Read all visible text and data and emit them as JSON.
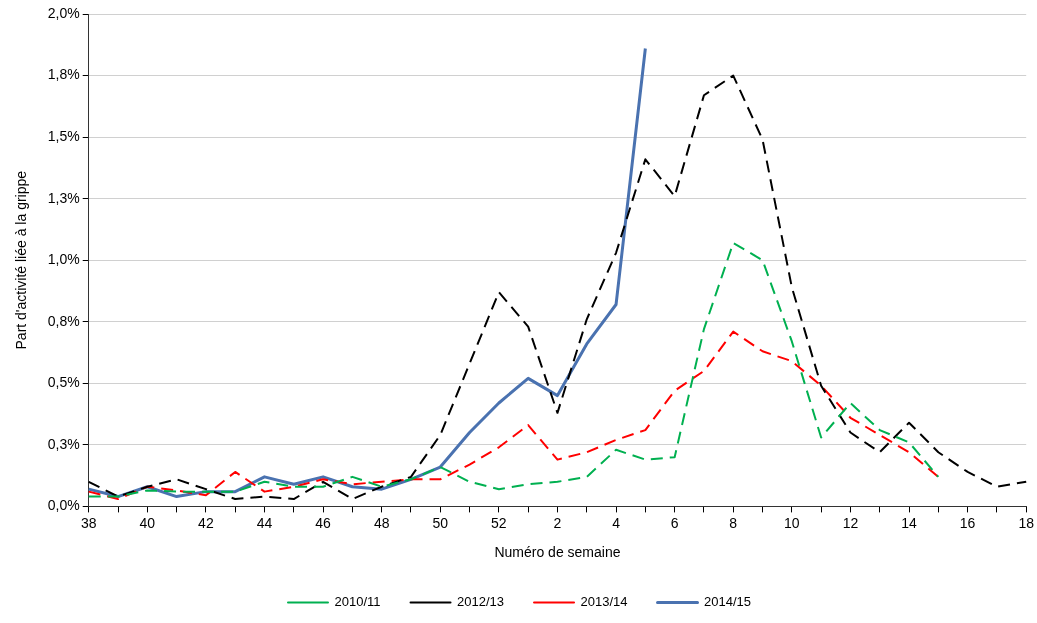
{
  "chart_data": {
    "type": "line",
    "xlabel": "Numéro de semaine",
    "ylabel": "Part d'activité liée à la grippe",
    "categories": [
      "38",
      null,
      "40",
      null,
      "42",
      null,
      "44",
      null,
      "46",
      null,
      "48",
      null,
      "50",
      null,
      "52",
      null,
      "2",
      null,
      "4",
      null,
      "6",
      null,
      "8",
      null,
      "10",
      null,
      "12",
      null,
      "14",
      null,
      "16",
      null,
      "18"
    ],
    "ylim": [
      0,
      2
    ],
    "yticks": [
      {
        "value": 0,
        "label": "0,0%"
      },
      {
        "value": 0.25,
        "label": "0,3%"
      },
      {
        "value": 0.5,
        "label": "0,5%"
      },
      {
        "value": 0.75,
        "label": "0,8%"
      },
      {
        "value": 1,
        "label": "1,0%"
      },
      {
        "value": 1.25,
        "label": "1,3%"
      },
      {
        "value": 1.5,
        "label": "1,5%"
      },
      {
        "value": 1.75,
        "label": "1,8%"
      },
      {
        "value": 2,
        "label": "2,0%"
      }
    ],
    "grid": "y",
    "legend": "bottom",
    "marker": "none",
    "series": [
      {
        "name": "2010/11",
        "color": "#00b050",
        "line_style": "dashed",
        "values": [
          0.04,
          0.04,
          0.065,
          0.06,
          0.06,
          0.06,
          0.1,
          0.08,
          0.08,
          0.12,
          0.08,
          0.11,
          0.16,
          0.1,
          0.07,
          0.09,
          0.1,
          0.12,
          0.23,
          0.19,
          0.2,
          0.72,
          1.07,
          1.0,
          0.67,
          0.28,
          0.42,
          0.31,
          0.26,
          0.12,
          null,
          null,
          null
        ]
      },
      {
        "name": "2012/13",
        "color": "#000000",
        "line_style": "dashed",
        "values": [
          0.1,
          0.04,
          0.08,
          0.11,
          0.07,
          0.03,
          0.04,
          0.03,
          0.1,
          0.03,
          0.08,
          0.12,
          0.29,
          0.58,
          0.87,
          0.73,
          0.38,
          0.76,
          1.03,
          1.41,
          1.26,
          1.67,
          1.75,
          1.49,
          0.89,
          0.49,
          0.3,
          0.22,
          0.34,
          0.22,
          0.14,
          0.08,
          0.1
        ]
      },
      {
        "name": "2013/14",
        "color": "#ff0000",
        "line_style": "dashed",
        "values": [
          0.06,
          0.03,
          0.08,
          0.065,
          0.045,
          0.14,
          0.06,
          0.08,
          0.11,
          0.09,
          0.1,
          0.11,
          0.11,
          0.17,
          0.24,
          0.33,
          0.19,
          0.22,
          0.27,
          0.31,
          0.47,
          0.55,
          0.71,
          0.63,
          0.59,
          0.49,
          0.36,
          0.29,
          0.22,
          0.12,
          null,
          null,
          null
        ]
      },
      {
        "name": "2014/15",
        "color": "#4a72b0",
        "line_style": "solid",
        "values": [
          0.07,
          0.04,
          0.08,
          0.04,
          0.06,
          0.06,
          0.12,
          0.09,
          0.12,
          0.08,
          0.07,
          0.11,
          0.16,
          0.3,
          0.42,
          0.52,
          0.45,
          0.66,
          0.82,
          1.86,
          null,
          null,
          null,
          null,
          null,
          null,
          null,
          null,
          null,
          null,
          null,
          null,
          null
        ]
      }
    ]
  }
}
